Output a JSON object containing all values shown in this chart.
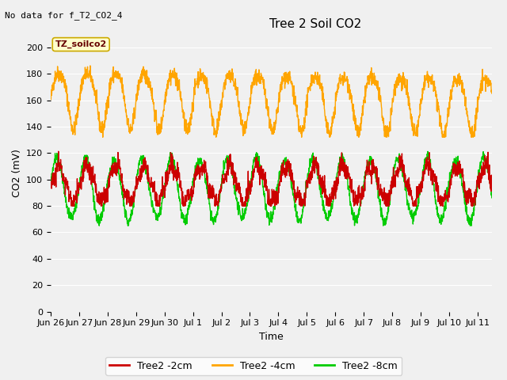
{
  "title": "Tree 2 Soil CO2",
  "top_left_note": "No data for f_T2_CO2_4",
  "ylabel": "CO2 (mV)",
  "xlabel": "Time",
  "xlim_days": [
    0,
    15.5
  ],
  "ylim": [
    0,
    210
  ],
  "yticks": [
    0,
    20,
    40,
    60,
    80,
    100,
    120,
    140,
    160,
    180,
    200
  ],
  "xtick_labels": [
    "Jun 26",
    "Jun 27",
    "Jun 28",
    "Jun 29",
    "Jun 30",
    "Jul 1",
    "Jul 2",
    "Jul 3",
    "Jul 4",
    "Jul 5",
    "Jul 6",
    "Jul 7",
    "Jul 8",
    "Jul 9",
    "Jul 10",
    "Jul 11"
  ],
  "background_color": "#f0f0f0",
  "plot_bg_color": "#f0f0f0",
  "grid_color": "#ffffff",
  "line_2cm_color": "#cc0000",
  "line_4cm_color": "#ffa500",
  "line_8cm_color": "#00cc00",
  "legend_label_2cm": "Tree2 -2cm",
  "legend_label_4cm": "Tree2 -4cm",
  "legend_label_8cm": "Tree2 -8cm",
  "annotation_label": "TZ_soilco2",
  "annotation_bg": "#ffffcc",
  "annotation_border": "#ccaa00",
  "line_width": 1.0,
  "font_size_title": 11,
  "font_size_axis": 9,
  "font_size_ticks": 8,
  "font_size_legend": 9,
  "font_size_note": 8,
  "font_size_annot": 8
}
